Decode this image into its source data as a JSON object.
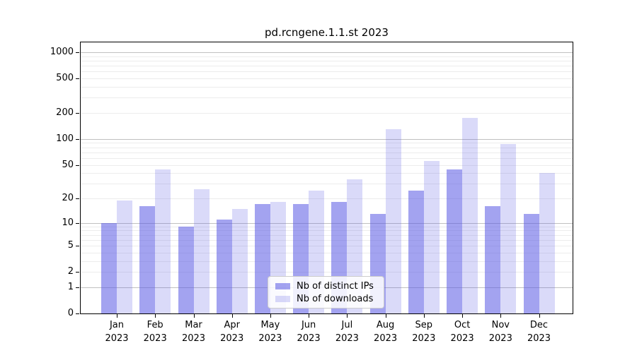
{
  "title": "pd.rcngene.1.1.st 2023",
  "chart_data": {
    "type": "bar",
    "title": "pd.rcngene.1.1.st 2023",
    "x_categories": [
      "Jan",
      "Feb",
      "Mar",
      "Apr",
      "May",
      "Jun",
      "Jul",
      "Aug",
      "Sep",
      "Oct",
      "Nov",
      "Dec"
    ],
    "x_year": "2023",
    "series": [
      {
        "name": "Nb of distinct IPs",
        "values": [
          10,
          16,
          9,
          11,
          17,
          17,
          18,
          13,
          25,
          44,
          16,
          13
        ],
        "color": "rgba(88,88,228,0.55)"
      },
      {
        "name": "Nb of downloads",
        "values": [
          19,
          44,
          26,
          15,
          18,
          25,
          34,
          129,
          55,
          176,
          87,
          40
        ],
        "color": "rgba(88,88,228,0.22)"
      }
    ],
    "y_scale": "log10(value+1)",
    "ylim": [
      0,
      1300
    ],
    "y_ticks": [
      0,
      1,
      2,
      5,
      10,
      20,
      50,
      100,
      200,
      500,
      1000
    ],
    "y_major_gridlines": [
      1,
      10,
      100,
      1000
    ],
    "y_minor_gridlines": [
      2,
      3,
      4,
      5,
      6,
      7,
      8,
      9,
      20,
      30,
      40,
      50,
      60,
      70,
      80,
      90,
      200,
      300,
      400,
      500,
      600,
      700,
      800,
      900
    ],
    "grid": true,
    "legend_position": "lower center"
  },
  "colors": {
    "bar_base": "#5858e4",
    "major_gridline": "#c0c0c0",
    "minor_gridline": "#ececec",
    "axis": "#000000"
  }
}
